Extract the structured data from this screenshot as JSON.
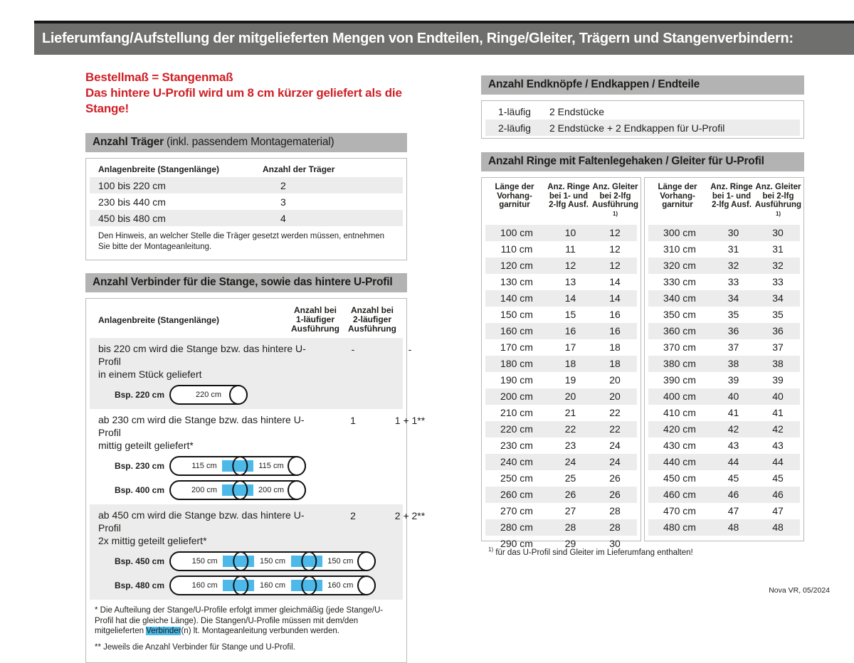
{
  "page": {
    "title": "Lieferumfang/Aufstellung der mitgelieferten Mengen von Endteilen, Ringe/Gleiter, Trägern und Stangenverbindern:",
    "footer": "Nova VR, 05/2024"
  },
  "notice": {
    "line1": "Bestellmaß = Stangenmaß",
    "line2": "Das hintere U-Profil wird um 8 cm kürzer geliefert als die Stange!"
  },
  "traeger": {
    "heading_bold": "Anzahl Träger",
    "heading_rest": " (inkl. passendem Montagematerial)",
    "col1": "Anlagenbreite (Stangenlänge)",
    "col2": "Anzahl der Träger",
    "rows": [
      [
        "100 bis 220 cm",
        "2"
      ],
      [
        "230 bis 440 cm",
        "3"
      ],
      [
        "450 bis 480 cm",
        "4"
      ]
    ],
    "note": "Den Hinweis, an welcher Stelle die Träger gesetzt werden müssen, entnehmen Sie bitte der Montageanleitung."
  },
  "verbinder": {
    "heading": "Anzahl Verbinder für die Stange, sowie das hintere U-Profil",
    "col1": "Anlagenbreite (Stangenlänge)",
    "col2": "Anzahl bei\n1-läufiger\nAusführung",
    "col3": "Anzahl bei\n2-läufiger\nAusführung",
    "blocks": [
      {
        "text": "bis 220 cm wird die Stange bzw. das hintere U-Profil\nin einem Stück geliefert",
        "val1": "-",
        "val2": "-",
        "examples": [
          {
            "label": "Bsp. 220 cm",
            "segments": [
              "220 cm"
            ]
          }
        ]
      },
      {
        "text": "ab 230 cm wird die Stange bzw. das hintere U-Profil\nmittig geteilt geliefert*",
        "val1": "1",
        "val2": "1 + 1**",
        "examples": [
          {
            "label": "Bsp. 230 cm",
            "segments": [
              "115 cm",
              "115 cm"
            ]
          },
          {
            "label": "Bsp. 400 cm",
            "segments": [
              "200 cm",
              "200 cm"
            ]
          }
        ]
      },
      {
        "text": "ab 450 cm wird die Stange bzw. das hintere U-Profil\n2x mittig geteilt geliefert*",
        "val1": "2",
        "val2": "2 + 2**",
        "examples": [
          {
            "label": "Bsp. 450 cm",
            "segments": [
              "150 cm",
              "150 cm",
              "150 cm"
            ]
          },
          {
            "label": "Bsp. 480 cm",
            "segments": [
              "160 cm",
              "160 cm",
              "160 cm"
            ]
          }
        ]
      }
    ],
    "footnote1_pre": "* Die Aufteilung der Stange/U-Profile erfolgt immer gleichmäßig (jede Stange/U-Profil hat die gleiche Länge). Die Stangen/U-Profile müssen mit dem/den mitgelieferten ",
    "footnote1_highlight": "Verbinder",
    "footnote1_post": "(n) lt. Montageanleitung verbunden werden.",
    "footnote2": "** Jeweils die Anzahl Verbinder für Stange und U-Profil."
  },
  "endteile": {
    "heading": "Anzahl Endknöpfe / Endkappen / Endteile",
    "rows": [
      [
        "1-läufig",
        "2 Endstücke"
      ],
      [
        "2-läufig",
        "2 Endstücke + 2 Endkappen für U-Profil"
      ]
    ]
  },
  "ringe": {
    "heading": "Anzahl Ringe mit Faltenlegehaken / Gleiter für U-Profil",
    "col_headers": [
      {
        "lines": "Länge der\nVorhang-\ngarnitur"
      },
      {
        "lines": "Anz. Ringe\nbei 1- und\n2-lfg Ausf."
      },
      {
        "lines": "Anz. Gleiter\nbei 2-lfg\nAusführung ",
        "sup": "1)"
      }
    ],
    "left_rows": [
      [
        "100 cm",
        "10",
        "12"
      ],
      [
        "110 cm",
        "11",
        "12"
      ],
      [
        "120 cm",
        "12",
        "12"
      ],
      [
        "130 cm",
        "13",
        "14"
      ],
      [
        "140 cm",
        "14",
        "14"
      ],
      [
        "150 cm",
        "15",
        "16"
      ],
      [
        "160 cm",
        "16",
        "16"
      ],
      [
        "170 cm",
        "17",
        "18"
      ],
      [
        "180 cm",
        "18",
        "18"
      ],
      [
        "190 cm",
        "19",
        "20"
      ],
      [
        "200 cm",
        "20",
        "20"
      ],
      [
        "210 cm",
        "21",
        "22"
      ],
      [
        "220 cm",
        "22",
        "22"
      ],
      [
        "230 cm",
        "23",
        "24"
      ],
      [
        "240 cm",
        "24",
        "24"
      ],
      [
        "250 cm",
        "25",
        "26"
      ],
      [
        "260 cm",
        "26",
        "26"
      ],
      [
        "270 cm",
        "27",
        "28"
      ],
      [
        "280 cm",
        "28",
        "28"
      ],
      [
        "290 cm",
        "29",
        "30"
      ]
    ],
    "right_rows": [
      [
        "300 cm",
        "30",
        "30"
      ],
      [
        "310 cm",
        "31",
        "31"
      ],
      [
        "320 cm",
        "32",
        "32"
      ],
      [
        "330 cm",
        "33",
        "33"
      ],
      [
        "340 cm",
        "34",
        "34"
      ],
      [
        "350 cm",
        "35",
        "35"
      ],
      [
        "360 cm",
        "36",
        "36"
      ],
      [
        "370 cm",
        "37",
        "37"
      ],
      [
        "380 cm",
        "38",
        "38"
      ],
      [
        "390 cm",
        "39",
        "39"
      ],
      [
        "400 cm",
        "40",
        "40"
      ],
      [
        "410 cm",
        "41",
        "41"
      ],
      [
        "420 cm",
        "42",
        "42"
      ],
      [
        "430 cm",
        "43",
        "43"
      ],
      [
        "440 cm",
        "44",
        "44"
      ],
      [
        "450 cm",
        "45",
        "45"
      ],
      [
        "460 cm",
        "46",
        "46"
      ],
      [
        "470 cm",
        "47",
        "47"
      ],
      [
        "480 cm",
        "48",
        "48"
      ]
    ],
    "footnote_sup": "1)",
    "footnote": " für das U-Profil sind Gleiter im Lieferumfang enthalten!"
  },
  "colors": {
    "banner_bg": "#6f6f6e",
    "section_bg": "#b3b3b3",
    "stripe_bg": "#ececec",
    "accent_red": "#cf2026",
    "connector_blue": "#4cb9e9"
  }
}
